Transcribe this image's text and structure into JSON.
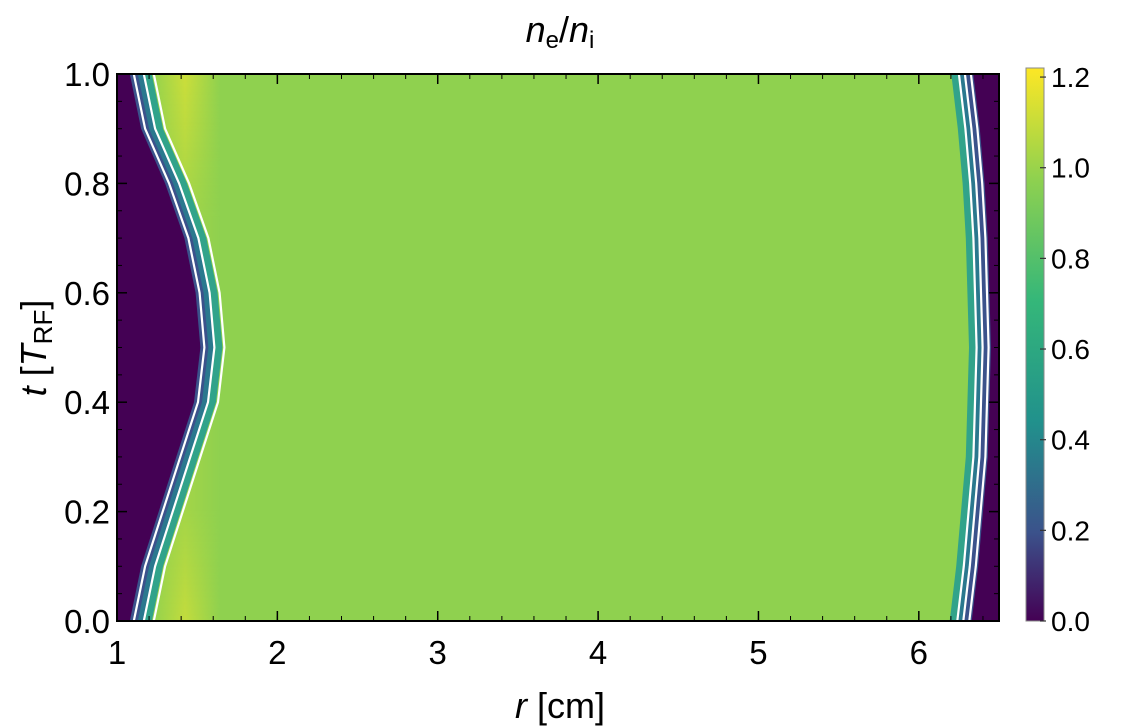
{
  "chart_data": {
    "type": "heatmap",
    "title": {
      "var1": "n",
      "sub1": "e",
      "slash": "/",
      "var2": "n",
      "sub2": "i"
    },
    "xlabel": {
      "var": "r",
      "unit": " [cm]"
    },
    "ylabel": {
      "var": "t",
      "open": " [",
      "sym": "T",
      "sub": "RF",
      "close": "]"
    },
    "xlim": [
      1,
      6.5
    ],
    "ylim": [
      0,
      1
    ],
    "x_ticks": [
      "1",
      "2",
      "3",
      "4",
      "5",
      "6"
    ],
    "y_ticks": [
      "0.0",
      "0.2",
      "0.4",
      "0.6",
      "0.8",
      "1.0"
    ],
    "colorbar": {
      "range": [
        0,
        1.22
      ],
      "ticks": [
        "0.0",
        "0.2",
        "0.4",
        "0.6",
        "0.8",
        "1.0",
        "1.2"
      ],
      "colormap": [
        "#440154",
        "#3b528b",
        "#21918c",
        "#5ec962",
        "#8fd14f",
        "#fde725"
      ]
    },
    "bulk_value": 1.0,
    "bulk_color": "#8fd14f",
    "left_sheath_edge_r": [
      {
        "t": 0.0,
        "r": 1.08
      },
      {
        "t": 0.1,
        "r": 1.15
      },
      {
        "t": 0.2,
        "r": 1.26
      },
      {
        "t": 0.3,
        "r": 1.37
      },
      {
        "t": 0.4,
        "r": 1.48
      },
      {
        "t": 0.5,
        "r": 1.52
      },
      {
        "t": 0.6,
        "r": 1.49
      },
      {
        "t": 0.7,
        "r": 1.42
      },
      {
        "t": 0.8,
        "r": 1.3
      },
      {
        "t": 0.9,
        "r": 1.15
      },
      {
        "t": 1.0,
        "r": 1.08
      }
    ],
    "right_sheath_edge_r": [
      {
        "t": 0.0,
        "r": 6.33
      },
      {
        "t": 0.1,
        "r": 6.37
      },
      {
        "t": 0.2,
        "r": 6.4
      },
      {
        "t": 0.3,
        "r": 6.43
      },
      {
        "t": 0.4,
        "r": 6.44
      },
      {
        "t": 0.5,
        "r": 6.45
      },
      {
        "t": 0.6,
        "r": 6.44
      },
      {
        "t": 0.7,
        "r": 6.43
      },
      {
        "t": 0.8,
        "r": 6.41
      },
      {
        "t": 0.9,
        "r": 6.38
      },
      {
        "t": 1.0,
        "r": 6.34
      }
    ],
    "contour_color": "#ffffff"
  }
}
